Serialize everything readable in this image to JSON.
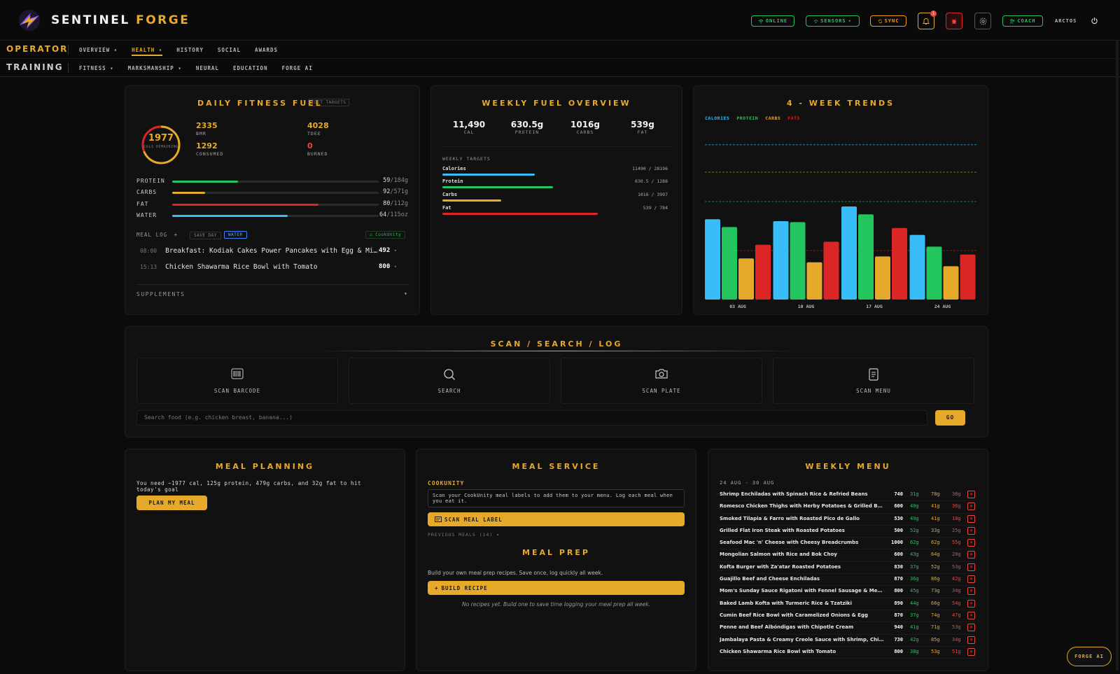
{
  "app": {
    "brand_part1": "SENTINEL",
    "brand_part2": "FORGE"
  },
  "topbar": {
    "online": "ONLINE",
    "sensors": "SENSORS",
    "sync": "SYNC",
    "notif_count": "1",
    "coach": "COACH",
    "username": "ARCTOS"
  },
  "nav1": {
    "title": "OPERATOR",
    "items": [
      "OVERVIEW",
      "HEALTH",
      "HISTORY",
      "SOCIAL",
      "AWARDS"
    ]
  },
  "nav2": {
    "title": "TRAINING",
    "items": [
      "FITNESS",
      "MARKSMANSHIP",
      "NEURAL",
      "EDUCATION",
      "FORGE AI"
    ]
  },
  "daily": {
    "title": "DAILY FITNESS FUEL",
    "edit_targets": "EDIT TARGETS",
    "remaining": "1977",
    "remaining_label": "CALS REMAINING",
    "bmr": "2335",
    "bmr_label": "BMR",
    "tdee": "4028",
    "tdee_label": "TDEE",
    "consumed": "1292",
    "consumed_label": "CONSUMED",
    "burned": "0",
    "burned_label": "BURNED",
    "macros": [
      {
        "label": "PROTEIN",
        "value": "59",
        "target": "/184g",
        "pct": 0.32,
        "color": "#22c55e"
      },
      {
        "label": "CARBS",
        "value": "92",
        "target": "/571g",
        "pct": 0.16,
        "color": "#e6a92a"
      },
      {
        "label": "FAT",
        "value": "80",
        "target": "/112g",
        "pct": 0.71,
        "color": "#dc2626"
      },
      {
        "label": "WATER",
        "value": "64",
        "target": "/115oz",
        "pct": 0.56,
        "color": "#38bdf8"
      }
    ],
    "meal_log_label": "MEAL LOG",
    "save_day": "SAVE DAY",
    "water": "WATER",
    "cookunity": "CookUnity",
    "meals": [
      {
        "time": "08:00",
        "name": "Breakfast: Kodiak Cakes Power Pancakes with Egg & Mi…",
        "cal": "492"
      },
      {
        "time": "15:13",
        "name": "Chicken Shawarma Rice Bowl with Tomato",
        "cal": "800"
      }
    ],
    "supplements": "SUPPLEMENTS"
  },
  "weekly": {
    "title": "WEEKLY FUEL OVERVIEW",
    "stats": [
      {
        "value": "11,490",
        "label": "CAL"
      },
      {
        "value": "630.5g",
        "label": "PROTEIN"
      },
      {
        "value": "1016g",
        "label": "CARBS"
      },
      {
        "value": "539g",
        "label": "FAT"
      }
    ],
    "targets_label": "WEEKLY TARGETS",
    "targets": [
      {
        "name": "Calories",
        "value": "11490 / 28196",
        "pct": 0.41,
        "color": "#38bdf8"
      },
      {
        "name": "Protein",
        "value": "630.5 / 1288",
        "pct": 0.49,
        "color": "#22c55e"
      },
      {
        "name": "Carbs",
        "value": "1016 / 3997",
        "pct": 0.26,
        "color": "#e6a92a"
      },
      {
        "name": "Fat",
        "value": "539 / 784",
        "pct": 0.69,
        "color": "#dc2626"
      }
    ]
  },
  "trends": {
    "title": "4 - WEEK TRENDS",
    "legend": [
      {
        "name": "CALORIES",
        "color": "#38bdf8"
      },
      {
        "name": "PROTEIN",
        "color": "#22c55e"
      },
      {
        "name": "CARBS",
        "color": "#e6a92a"
      },
      {
        "name": "FATS",
        "color": "#dc2626"
      }
    ]
  },
  "chart_data": {
    "type": "bar",
    "categories": [
      "03 AUG",
      "10 AUG",
      "17 AUG",
      "24 AUG"
    ],
    "series": [
      {
        "name": "CALORIES",
        "color": "#38bdf8",
        "values": [
          0.82,
          0.8,
          0.95,
          0.66
        ]
      },
      {
        "name": "PROTEIN",
        "color": "#22c55e",
        "values": [
          0.74,
          0.79,
          0.87,
          0.54
        ]
      },
      {
        "name": "CARBS",
        "color": "#e6a92a",
        "values": [
          0.42,
          0.38,
          0.44,
          0.34
        ]
      },
      {
        "name": "FATS",
        "color": "#dc2626",
        "values": [
          0.56,
          0.59,
          0.73,
          0.46
        ]
      }
    ],
    "target_lines": [
      {
        "color": "#38bdf8",
        "value": 1.58
      },
      {
        "color": "#e6a92a",
        "value": 1.3
      },
      {
        "color": "#22c55e",
        "value": 1.0
      },
      {
        "color": "#dc2626",
        "value": 0.5
      }
    ],
    "ylim": [
      0,
      1.75
    ],
    "grid": false,
    "legend_position": "top-left"
  },
  "scan": {
    "title": "SCAN / SEARCH / LOG",
    "tiles": [
      "SCAN BARCODE",
      "SEARCH",
      "SCAN PLATE",
      "SCAN MENU"
    ],
    "search_placeholder": "Search food (e.g. chicken breast, banana...)",
    "go": "GO"
  },
  "planning": {
    "title": "MEAL PLANNING",
    "text": "You need ~1977 cal, 125g protein, 479g carbs, and 32g fat to hit today's goal",
    "button": "PLAN MY MEAL"
  },
  "service": {
    "title": "MEAL SERVICE",
    "sub": "COOKUNITY",
    "desc": "Scan your CookUnity meal labels to add them to your menu. Log each meal when you eat it.",
    "scan_btn": "SCAN MEAL LABEL",
    "previous": "PREVIOUS MEALS (14)",
    "prep_title": "MEAL PREP",
    "prep_text": "Build your own meal prep recipes. Save once, log quickly all week.",
    "prep_btn": "BUILD RECIPE",
    "prep_empty": "No recipes yet. Build one to save time logging your meal prep all week."
  },
  "menu": {
    "title": "WEEKLY MENU",
    "range": "24 AUG - 30 AUG",
    "items": [
      {
        "name": "Shrimp Enchiladas with Spinach Rice & Refried Beans",
        "cal": "740",
        "p": "31g",
        "c": "78g",
        "f": "38g"
      },
      {
        "name": "Romesco Chicken Thighs with Herby Potatoes & Grilled Broccolini",
        "cal": "600",
        "p": "40g",
        "c": "41g",
        "f": "36g"
      },
      {
        "name": "Smoked Tilapia & Farro with Roasted Pico de Gallo",
        "cal": "530",
        "p": "49g",
        "c": "41g",
        "f": "18g"
      },
      {
        "name": "Grilled Flat Iron Steak with Roasted Potatoes",
        "cal": "500",
        "p": "52g",
        "c": "33g",
        "f": "25g"
      },
      {
        "name": "Seafood Mac 'n' Cheese with Cheesy Breadcrumbs",
        "cal": "1000",
        "p": "62g",
        "c": "62g",
        "f": "55g"
      },
      {
        "name": "Mongolian Salmon with Rice and Bok Choy",
        "cal": "600",
        "p": "43g",
        "c": "64g",
        "f": "20g"
      },
      {
        "name": "Kofta Burger with Za'atar Roasted Potatoes",
        "cal": "830",
        "p": "37g",
        "c": "52g",
        "f": "53g"
      },
      {
        "name": "Guajillo Beef and Cheese Enchiladas",
        "cal": "870",
        "p": "36g",
        "c": "86g",
        "f": "42g"
      },
      {
        "name": "Mom's Sunday Sauce Rigatoni with Fennel Sausage & Meatballs",
        "cal": "800",
        "p": "45g",
        "c": "73g",
        "f": "34g"
      },
      {
        "name": "Baked Lamb Kofta with Turmeric Rice & Tzatziki",
        "cal": "890",
        "p": "44g",
        "c": "66g",
        "f": "54g"
      },
      {
        "name": "Cumin Beef Rice Bowl with Caramelized Onions & Egg",
        "cal": "870",
        "p": "37g",
        "c": "74g",
        "f": "47g"
      },
      {
        "name": "Penne and Beef Albóndigas with Chipotle Cream",
        "cal": "940",
        "p": "41g",
        "c": "71g",
        "f": "53g"
      },
      {
        "name": "Jambalaya Pasta & Creamy Creole Sauce with Shrimp, Chicken & Sausage",
        "cal": "730",
        "p": "42g",
        "c": "85g",
        "f": "34g"
      },
      {
        "name": "Chicken Shawarma Rice Bowl with Tomato",
        "cal": "800",
        "p": "38g",
        "c": "53g",
        "f": "51g"
      }
    ]
  },
  "forge_ai": "FORGE AI"
}
